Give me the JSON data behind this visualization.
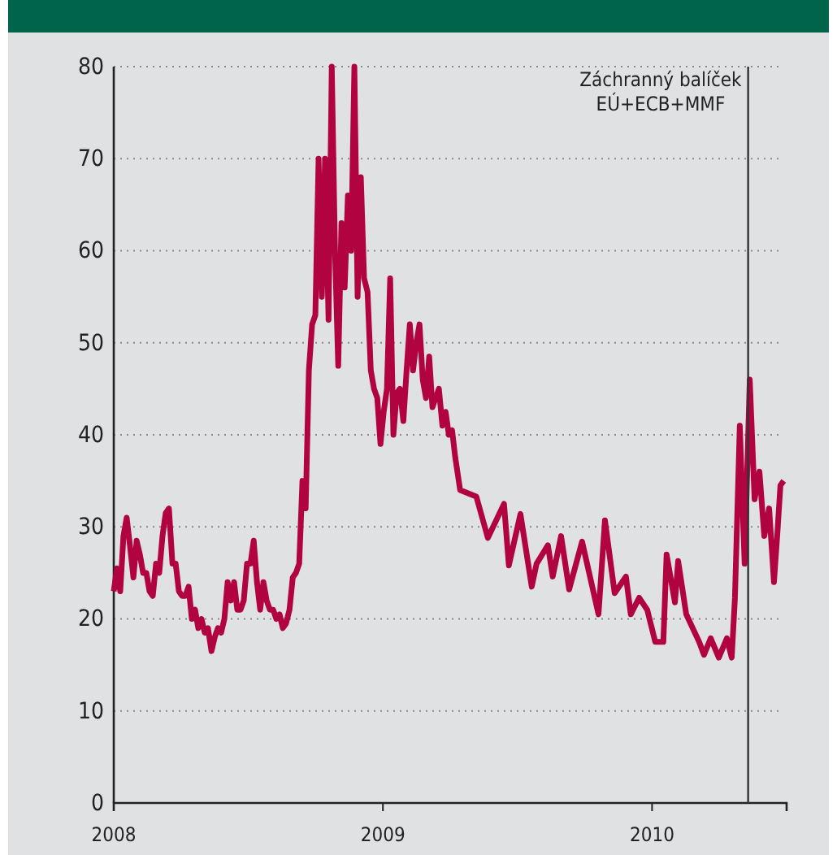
{
  "chart_data": {
    "type": "line",
    "x": [
      2008,
      2008.012,
      2008.024,
      2008.036,
      2008.048,
      2008.06,
      2008.073,
      2008.085,
      2008.097,
      2008.109,
      2008.121,
      2008.133,
      2008.145,
      2008.157,
      2008.169,
      2008.181,
      2008.193,
      2008.205,
      2008.218,
      2008.23,
      2008.242,
      2008.254,
      2008.266,
      2008.278,
      2008.29,
      2008.302,
      2008.314,
      2008.326,
      2008.338,
      2008.35,
      2008.363,
      2008.375,
      2008.387,
      2008.399,
      2008.411,
      2008.423,
      2008.435,
      2008.447,
      2008.459,
      2008.471,
      2008.483,
      2008.495,
      2008.508,
      2008.52,
      2008.532,
      2008.544,
      2008.556,
      2008.568,
      2008.58,
      2008.592,
      2008.604,
      2008.616,
      2008.628,
      2008.64,
      2008.653,
      2008.665,
      2008.677,
      2008.689,
      2008.701,
      2008.713,
      2008.725,
      2008.737,
      2008.749,
      2008.761,
      2008.773,
      2008.785,
      2008.798,
      2008.81,
      2008.822,
      2008.834,
      2008.846,
      2008.858,
      2008.87,
      2008.882,
      2008.894,
      2008.906,
      2008.918,
      2008.93,
      2008.943,
      2008.955,
      2008.967,
      2008.979,
      2008.991,
      2009.003,
      2009.015,
      2009.027,
      2009.039,
      2009.051,
      2009.063,
      2009.076,
      2009.088,
      2009.1,
      2009.112,
      2009.124,
      2009.136,
      2009.148,
      2009.16,
      2009.172,
      2009.184,
      2009.196,
      2009.208,
      2009.221,
      2009.233,
      2009.245,
      2009.257,
      2009.269,
      2009.287,
      2009.347,
      2009.39,
      2009.45,
      2009.468,
      2009.511,
      2009.553,
      2009.571,
      2009.613,
      2009.631,
      2009.662,
      2009.692,
      2009.74,
      2009.801,
      2009.825,
      2009.861,
      2009.903,
      2009.921,
      2009.952,
      2009.982,
      2010.012,
      2010.042,
      2010.054,
      2010.085,
      2010.097,
      2010.127,
      2010.175,
      2010.193,
      2010.218,
      2010.248,
      2010.278,
      2010.296,
      2010.308,
      2010.326,
      2010.344,
      2010.363,
      2010.381,
      2010.399,
      2010.417,
      2010.435,
      2010.453,
      2010.465,
      2010.477,
      2010.489
    ],
    "series": [
      {
        "color": "#b0033f",
        "values": [
          23,
          25.5,
          23,
          29,
          31,
          28,
          24.5,
          28.5,
          27,
          25,
          25,
          23,
          22.5,
          26,
          25,
          29,
          31.5,
          32,
          26,
          26,
          23,
          22.5,
          22.5,
          23.5,
          20,
          21,
          19,
          20,
          18.5,
          19,
          16.5,
          18,
          19,
          18.5,
          20,
          24,
          22,
          24,
          21,
          21,
          22,
          26,
          26,
          28.5,
          24,
          21,
          24,
          22,
          21,
          21,
          20,
          20.5,
          19,
          19.5,
          21,
          24.5,
          25,
          26,
          35,
          32,
          47,
          52,
          53,
          70,
          55,
          70,
          52.5,
          80,
          60,
          47.5,
          63,
          56,
          66,
          60,
          80,
          55,
          68,
          57,
          55.5,
          47,
          45,
          44,
          39,
          42.5,
          45,
          57,
          40,
          44.5,
          45,
          41.5,
          47,
          52,
          47,
          50,
          52,
          46,
          44,
          48.5,
          43,
          44,
          45,
          41,
          42.5,
          40,
          40.5,
          37.5,
          34,
          33.3,
          28.8,
          32.5,
          25.8,
          31.4,
          23.5,
          26,
          28,
          24.6,
          29,
          23.2,
          28.4,
          20.5,
          30.7,
          22.8,
          24.6,
          20.5,
          22.3,
          21,
          17.5,
          17.5,
          27,
          21.8,
          26.3,
          20.5,
          17.5,
          16.1,
          17.9,
          15.8,
          17.9,
          15.8,
          22.3,
          41,
          26,
          46,
          33,
          36,
          29,
          32,
          24,
          29,
          34.5,
          35
        ]
      }
    ],
    "xlim": [
      2008,
      2010.5
    ],
    "xticks": [
      2008,
      2009,
      2010
    ],
    "ylim": [
      0,
      80
    ],
    "yticks": [
      0,
      10,
      20,
      30,
      40,
      50,
      60,
      70,
      80
    ],
    "grid": "y",
    "line_style": "solid",
    "marker": "none",
    "ref_lines": [
      {
        "axis": "x",
        "value": 2010.357,
        "label": "Záchranný balíček EÚ+ECB+MMF",
        "color": "#333333"
      }
    ]
  }
}
